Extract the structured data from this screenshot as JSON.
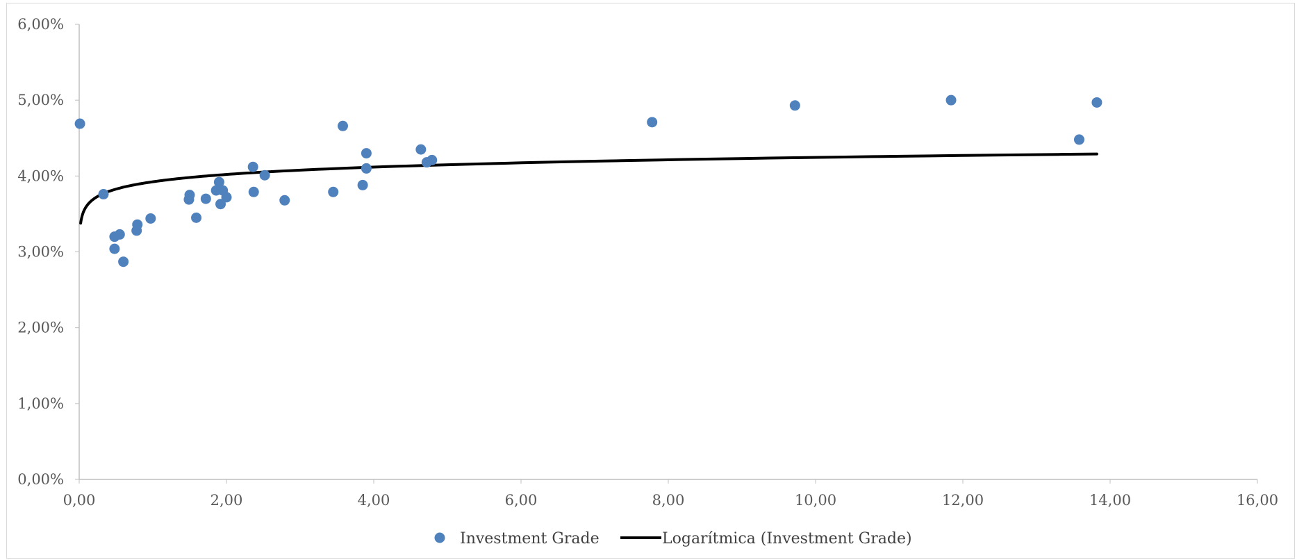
{
  "chart_data": {
    "type": "scatter",
    "title": "",
    "xlabel": "",
    "ylabel": "",
    "xlim": [
      0,
      16
    ],
    "ylim": [
      0,
      0.06
    ],
    "x_ticks": [
      0,
      2,
      4,
      6,
      8,
      10,
      12,
      14,
      16
    ],
    "x_tick_labels": [
      "0,00",
      "2,00",
      "4,00",
      "6,00",
      "8,00",
      "10,00",
      "12,00",
      "14,00",
      "16,00"
    ],
    "y_ticks": [
      0,
      0.01,
      0.02,
      0.03,
      0.04,
      0.05,
      0.06
    ],
    "y_tick_labels": [
      "0,00%",
      "1,00%",
      "2,00%",
      "3,00%",
      "4,00%",
      "5,00%",
      "6,00%"
    ],
    "grid": false,
    "legend_position": "bottom",
    "series": [
      {
        "name": "Investment Grade",
        "kind": "scatter",
        "color": "#4f81bd",
        "points": [
          [
            0.01,
            0.0469
          ],
          [
            0.33,
            0.0376
          ],
          [
            0.48,
            0.032
          ],
          [
            0.48,
            0.0304
          ],
          [
            0.55,
            0.0323
          ],
          [
            0.6,
            0.0287
          ],
          [
            0.78,
            0.0328
          ],
          [
            0.79,
            0.0336
          ],
          [
            0.97,
            0.0344
          ],
          [
            1.49,
            0.0369
          ],
          [
            1.5,
            0.0375
          ],
          [
            1.59,
            0.0345
          ],
          [
            1.72,
            0.037
          ],
          [
            1.86,
            0.0381
          ],
          [
            1.9,
            0.0392
          ],
          [
            1.92,
            0.0363
          ],
          [
            1.95,
            0.0381
          ],
          [
            2.0,
            0.0372
          ],
          [
            2.36,
            0.0412
          ],
          [
            2.37,
            0.0379
          ],
          [
            2.52,
            0.0401
          ],
          [
            2.79,
            0.0368
          ],
          [
            3.45,
            0.0379
          ],
          [
            3.58,
            0.0466
          ],
          [
            3.85,
            0.0388
          ],
          [
            3.9,
            0.041
          ],
          [
            3.9,
            0.043
          ],
          [
            4.64,
            0.0435
          ],
          [
            4.72,
            0.0418
          ],
          [
            4.79,
            0.0421
          ],
          [
            7.78,
            0.0471
          ],
          [
            9.72,
            0.0493
          ],
          [
            11.84,
            0.05
          ],
          [
            13.58,
            0.0448
          ],
          [
            13.82,
            0.0497
          ]
        ]
      },
      {
        "name": "Logarítmica (Investment Grade)",
        "kind": "trendline",
        "fit": "logarithmic",
        "color": "#000000",
        "x_range": [
          0.02,
          13.82
        ],
        "coefficients": {
          "a": 0.03924,
          "b": 0.001395
        }
      }
    ]
  },
  "legend": {
    "items": [
      {
        "label": "Investment Grade",
        "symbol": "marker",
        "color": "#4f81bd"
      },
      {
        "label": "Logarítmica (Investment Grade)",
        "symbol": "line",
        "color": "#000000"
      }
    ]
  }
}
